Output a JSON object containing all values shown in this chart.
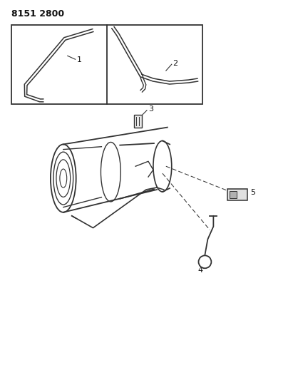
{
  "title": "8151 2800",
  "bg_color": "#ffffff",
  "line_color": "#333333",
  "label_color": "#111111",
  "fig_width": 4.11,
  "fig_height": 5.33,
  "dpi": 100
}
